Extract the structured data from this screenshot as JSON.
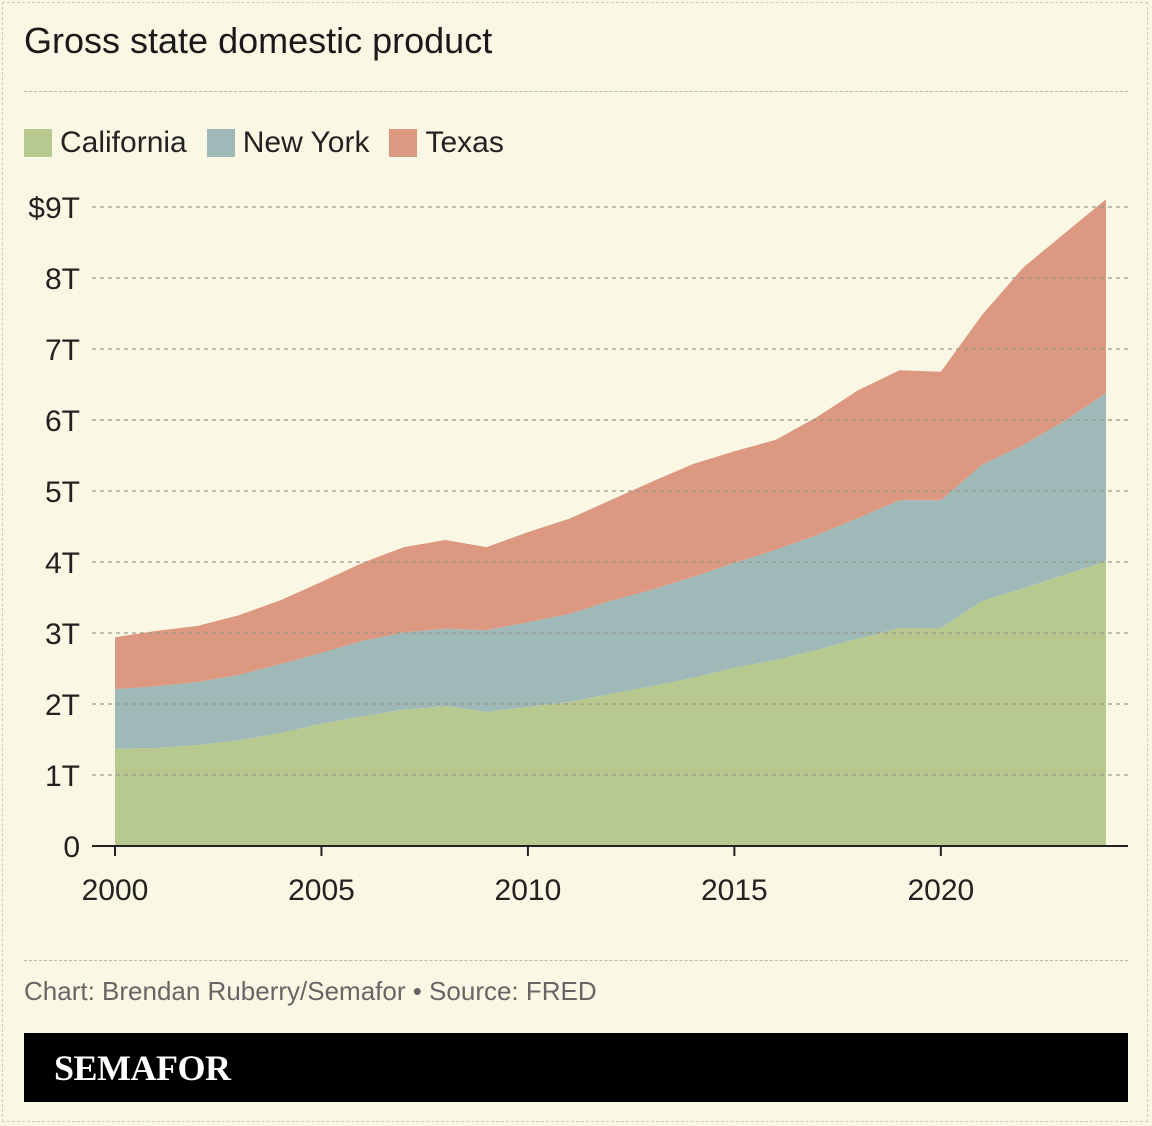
{
  "title": "Gross state domestic product",
  "credit": "Chart: Brendan Ruberry/Semafor • Source: FRED",
  "brand": "SEMAFOR",
  "chart_data": {
    "type": "area",
    "stacked": true,
    "title": "Gross state domestic product",
    "x": [
      2000,
      2001,
      2002,
      2003,
      2004,
      2005,
      2006,
      2007,
      2008,
      2009,
      2010,
      2011,
      2012,
      2013,
      2014,
      2015,
      2016,
      2017,
      2018,
      2019,
      2020,
      2021,
      2022,
      2023,
      2024
    ],
    "series": [
      {
        "name": "California",
        "color": "#b8c98f",
        "values": [
          1.37,
          1.38,
          1.42,
          1.49,
          1.59,
          1.72,
          1.83,
          1.92,
          1.97,
          1.89,
          1.96,
          2.03,
          2.14,
          2.25,
          2.37,
          2.51,
          2.62,
          2.76,
          2.92,
          3.07,
          3.07,
          3.45,
          3.63,
          3.82,
          4.01
        ]
      },
      {
        "name": "New York",
        "color": "#9fb9b8",
        "values": [
          0.84,
          0.87,
          0.89,
          0.92,
          0.97,
          1.0,
          1.06,
          1.09,
          1.09,
          1.15,
          1.19,
          1.24,
          1.31,
          1.36,
          1.42,
          1.48,
          1.55,
          1.62,
          1.7,
          1.8,
          1.8,
          1.92,
          2.02,
          2.17,
          2.37
        ]
      },
      {
        "name": "Texas",
        "color": "#dc9880",
        "values": [
          0.73,
          0.78,
          0.79,
          0.84,
          0.9,
          1.0,
          1.1,
          1.2,
          1.25,
          1.17,
          1.27,
          1.34,
          1.42,
          1.52,
          1.59,
          1.57,
          1.55,
          1.66,
          1.8,
          1.83,
          1.81,
          2.11,
          2.5,
          2.64,
          2.73
        ]
      }
    ],
    "ylim": [
      0,
      9
    ],
    "xlim": [
      2000,
      2024
    ],
    "yticks": [
      0,
      1,
      2,
      3,
      4,
      5,
      6,
      7,
      8,
      9
    ],
    "ytick_labels": [
      "0",
      "1T",
      "2T",
      "3T",
      "4T",
      "5T",
      "6T",
      "7T",
      "8T",
      "$9T"
    ],
    "xticks": [
      2000,
      2005,
      2010,
      2015,
      2020
    ],
    "xtick_labels": [
      "2000",
      "2005",
      "2010",
      "2015",
      "2020"
    ],
    "unit": "trillion USD",
    "grid": "horizontal dashed",
    "legend": "top-left"
  }
}
